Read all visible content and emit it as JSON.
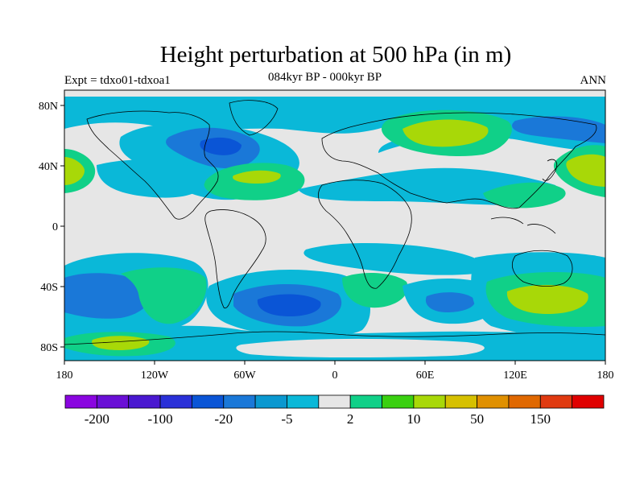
{
  "header": {
    "title": "Height perturbation at 500 hPa (in m)",
    "left_string": "Expt = tdxo01-tdxoa1",
    "center_string": "084kyr BP - 000kyr BP",
    "right_string": "ANN"
  },
  "map": {
    "projection": "cylindrical-equidistant",
    "background": "#e6e6e6",
    "lon_labels": [
      "180",
      "120W",
      "60W",
      "0",
      "60E",
      "120E",
      "180"
    ],
    "lat_labels": [
      "80N",
      "40N",
      "0",
      "40S",
      "80S"
    ]
  },
  "colorbar": {
    "colors": [
      "#8a05e0",
      "#6a0fd6",
      "#4a18d0",
      "#2a30d8",
      "#0a55d6",
      "#1a78d8",
      "#0a98d0",
      "#0ab8d8",
      "#e6e6e6",
      "#10d088",
      "#3ad010",
      "#a8d808",
      "#d6c000",
      "#e09000",
      "#e06800",
      "#e03a10",
      "#e00000"
    ],
    "labels": [
      "-200",
      "-100",
      "-20",
      "-5",
      "2",
      "10",
      "50",
      "150"
    ]
  },
  "chart_data": {
    "type": "contour-map",
    "variable": "Height perturbation at 500 hPa",
    "units": "m",
    "regions": [
      {
        "name": "north-atlantic-low",
        "value": -10
      },
      {
        "name": "siberia-low",
        "value": -10
      },
      {
        "name": "eastern-us-high",
        "value": 10
      },
      {
        "name": "central-asia-high",
        "value": 10
      },
      {
        "name": "north-pacific-high",
        "value": 10
      },
      {
        "name": "south-atlantic-low",
        "value": -10
      },
      {
        "name": "australia-high",
        "value": 10
      },
      {
        "name": "south-pacific-high",
        "value": 10
      }
    ]
  }
}
